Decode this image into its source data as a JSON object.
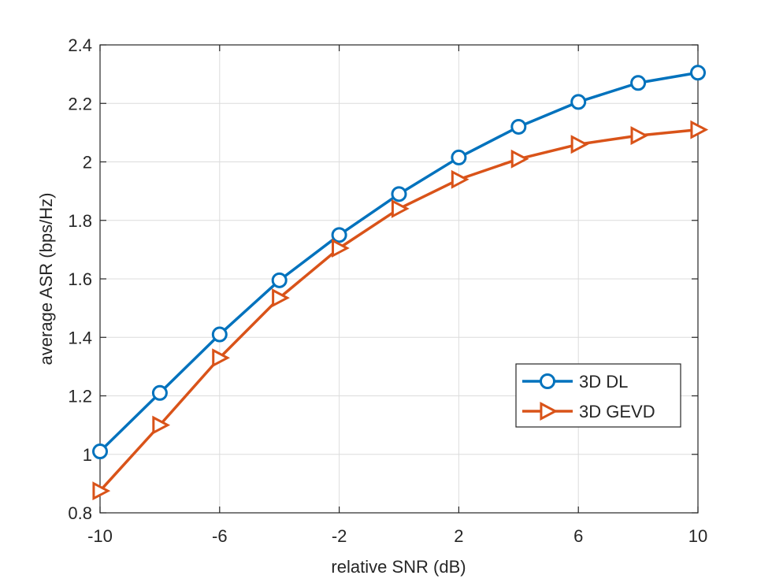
{
  "chart_data": {
    "type": "line",
    "title": "",
    "xlabel": "relative SNR (dB)",
    "ylabel": "average ASR (bps/Hz)",
    "xlim": [
      -10,
      10
    ],
    "ylim": [
      0.8,
      2.4
    ],
    "xticks": [
      -10,
      -6,
      -2,
      2,
      6,
      10
    ],
    "xtick_labels": [
      "-10",
      "-6",
      "-2",
      "2",
      "6",
      "10"
    ],
    "yticks": [
      0.8,
      1.0,
      1.2,
      1.4,
      1.6,
      1.8,
      2.0,
      2.2,
      2.4
    ],
    "ytick_labels": [
      "0.8",
      "1",
      "1.2",
      "1.4",
      "1.6",
      "1.8",
      "2",
      "2.2",
      "2.4"
    ],
    "grid": true,
    "legend_position": "lower-right",
    "x": [
      -10,
      -8,
      -6,
      -4,
      -2,
      0,
      2,
      4,
      6,
      8,
      10
    ],
    "series": [
      {
        "name": "3D DL",
        "color": "#0072BD",
        "marker": "circle",
        "values": [
          1.01,
          1.21,
          1.41,
          1.595,
          1.75,
          1.89,
          2.015,
          2.12,
          2.205,
          2.27,
          2.305
        ]
      },
      {
        "name": "3D GEVD",
        "color": "#D95319",
        "marker": "triangle-right",
        "values": [
          0.875,
          1.1,
          1.33,
          1.535,
          1.705,
          1.84,
          1.94,
          2.01,
          2.06,
          2.09,
          2.11
        ]
      }
    ]
  }
}
